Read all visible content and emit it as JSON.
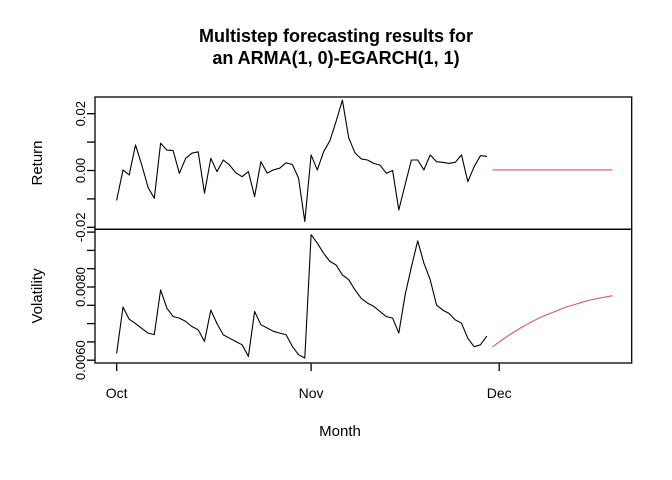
{
  "title": {
    "line1": "Multistep forecasting results for",
    "line2": "an ARMA(1, 0)-EGARCH(1, 1)"
  },
  "colors": {
    "actual": "#000000",
    "forecast": "#d8566a",
    "background": "#ffffff"
  },
  "x_axis": {
    "label": "Month",
    "tick_labels": [
      "Oct",
      "Nov",
      "Dec"
    ],
    "tick_day_index": [
      0,
      31,
      61
    ]
  },
  "chart_data": [
    {
      "type": "line",
      "panel": "return",
      "ylabel": "Return",
      "ylim": [
        -0.0207,
        0.0259
      ],
      "yticks": [
        0.02,
        0.01,
        0.0,
        -0.01,
        -0.02
      ],
      "ytick_labels": [
        "0.02",
        "0.00",
        "-0.02"
      ],
      "x_start": "Oct 1",
      "x_unit": "day",
      "series": [
        {
          "name": "actual",
          "color": "#000000",
          "x_index_start": 0,
          "values": [
            -0.0104,
            0.0002,
            -0.0016,
            0.009,
            0.0019,
            -0.006,
            -0.0098,
            0.0096,
            0.0072,
            0.007,
            -0.001,
            0.0043,
            0.0061,
            0.0066,
            -0.008,
            0.0043,
            -0.0004,
            0.0037,
            0.0019,
            -0.0008,
            -0.0022,
            -0.0004,
            -0.0092,
            0.0031,
            -0.0009,
            0.0002,
            0.0008,
            0.0027,
            0.0021,
            -0.0026,
            -0.018,
            0.0055,
            0.0002,
            0.0066,
            0.0105,
            0.0173,
            0.0248,
            0.0115,
            0.0062,
            0.0041,
            0.0037,
            0.0025,
            0.0019,
            -0.001,
            0.0,
            -0.0139,
            -0.005,
            0.0037,
            0.0037,
            0.0002,
            0.0055,
            0.0031,
            0.0029,
            0.0025,
            0.0029,
            0.0055,
            -0.0039,
            0.0013,
            0.0052,
            0.005
          ]
        },
        {
          "name": "forecast",
          "color": "#d8566a",
          "x_index_start": 60,
          "values": [
            0.0002,
            0.0002,
            0.0002,
            0.0002,
            0.0002,
            0.0002,
            0.0002,
            0.0002,
            0.0002,
            0.0002,
            0.0002,
            0.0002,
            0.0002,
            0.0002,
            0.0002,
            0.0002,
            0.0002,
            0.0002,
            0.0002,
            0.0002
          ]
        }
      ]
    },
    {
      "type": "line",
      "panel": "volatility",
      "ylabel": "Volatility",
      "ylim": [
        0.00592,
        0.00957
      ],
      "yticks": [
        0.0095,
        0.009,
        0.0085,
        0.008,
        0.0075,
        0.007,
        0.0065,
        0.006
      ],
      "ytick_labels": [
        "0.0080",
        "0.0060"
      ],
      "x_start": "Oct 1",
      "x_unit": "day",
      "series": [
        {
          "name": "actual",
          "color": "#000000",
          "x_index_start": 0,
          "values": [
            0.0062,
            0.00745,
            0.00712,
            0.007,
            0.00687,
            0.00674,
            0.0067,
            0.00792,
            0.00742,
            0.00719,
            0.00715,
            0.00706,
            0.00692,
            0.00683,
            0.00651,
            0.00737,
            0.007,
            0.00669,
            0.0066,
            0.00651,
            0.00642,
            0.0061,
            0.00733,
            0.00697,
            0.00688,
            0.00679,
            0.00674,
            0.0067,
            0.00638,
            0.00615,
            0.00606,
            0.00943,
            0.0092,
            0.00892,
            0.0087,
            0.0086,
            0.00833,
            0.0082,
            0.00792,
            0.00769,
            0.00756,
            0.00747,
            0.00733,
            0.00719,
            0.00715,
            0.00674,
            0.00778,
            0.00855,
            0.00926,
            0.00865,
            0.0082,
            0.00751,
            0.00737,
            0.00728,
            0.0071,
            0.00701,
            0.0066,
            0.00637,
            0.00642,
            0.00665
          ]
        },
        {
          "name": "forecast",
          "color": "#d8566a",
          "x_index_start": 60,
          "values": [
            0.00637,
            0.0065,
            0.00662,
            0.00673,
            0.00684,
            0.00694,
            0.00703,
            0.00712,
            0.0072,
            0.00727,
            0.00734,
            0.00741,
            0.00747,
            0.00752,
            0.00757,
            0.00762,
            0.00766,
            0.0077,
            0.00773,
            0.00776
          ]
        }
      ]
    }
  ]
}
